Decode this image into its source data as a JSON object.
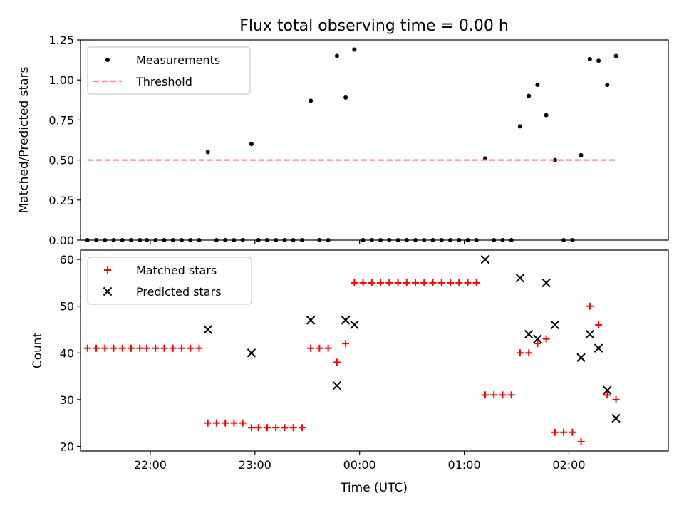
{
  "figure": {
    "title": "Flux total observing time = 0.00 h",
    "xlabel": "Time (UTC)"
  },
  "chart_data": [
    {
      "type": "scatter",
      "ylabel": "Matched/Predicted stars",
      "ylim": [
        0,
        1.25
      ],
      "yticks": [
        0.0,
        0.25,
        0.5,
        0.75,
        1.0,
        1.25
      ],
      "xlim": [
        "21:20",
        "02:57"
      ],
      "xticks": [
        "22:00",
        "23:00",
        "00:00",
        "01:00",
        "02:00"
      ],
      "legend_position": "upper-left",
      "series": [
        {
          "name": "Measurements",
          "marker": "dot",
          "color": "#000000",
          "points": [
            [
              "21:24",
              0
            ],
            [
              "21:29",
              0
            ],
            [
              "21:34",
              0
            ],
            [
              "21:39",
              0
            ],
            [
              "21:44",
              0
            ],
            [
              "21:49",
              0
            ],
            [
              "21:54",
              0
            ],
            [
              "21:58",
              0
            ],
            [
              "22:03",
              0
            ],
            [
              "22:08",
              0
            ],
            [
              "22:13",
              0
            ],
            [
              "22:18",
              0
            ],
            [
              "22:23",
              0
            ],
            [
              "22:28",
              0
            ],
            [
              "22:33",
              0.55
            ],
            [
              "22:38",
              0
            ],
            [
              "22:43",
              0
            ],
            [
              "22:48",
              0
            ],
            [
              "22:53",
              0
            ],
            [
              "22:58",
              0.6
            ],
            [
              "23:02",
              0
            ],
            [
              "23:07",
              0
            ],
            [
              "23:12",
              0
            ],
            [
              "23:17",
              0
            ],
            [
              "23:22",
              0
            ],
            [
              "23:27",
              0
            ],
            [
              "23:32",
              0.87
            ],
            [
              "23:37",
              0
            ],
            [
              "23:42",
              0
            ],
            [
              "23:47",
              1.15
            ],
            [
              "23:52",
              0.89
            ],
            [
              "23:57",
              1.19
            ],
            [
              "00:02",
              0
            ],
            [
              "00:07",
              0
            ],
            [
              "00:12",
              0
            ],
            [
              "00:17",
              0
            ],
            [
              "00:22",
              0
            ],
            [
              "00:27",
              0
            ],
            [
              "00:32",
              0
            ],
            [
              "00:37",
              0
            ],
            [
              "00:42",
              0
            ],
            [
              "00:47",
              0
            ],
            [
              "00:52",
              0
            ],
            [
              "00:57",
              0
            ],
            [
              "01:02",
              0
            ],
            [
              "01:07",
              0
            ],
            [
              "01:12",
              0.51
            ],
            [
              "01:17",
              0
            ],
            [
              "01:22",
              0
            ],
            [
              "01:27",
              0
            ],
            [
              "01:32",
              0.71
            ],
            [
              "01:37",
              0.9
            ],
            [
              "01:42",
              0.97
            ],
            [
              "01:47",
              0.78
            ],
            [
              "01:52",
              0.5
            ],
            [
              "01:57",
              0
            ],
            [
              "02:02",
              0
            ],
            [
              "02:07",
              0.53
            ],
            [
              "02:12",
              1.13
            ],
            [
              "02:17",
              1.12
            ],
            [
              "02:22",
              0.97
            ],
            [
              "02:27",
              1.15
            ]
          ]
        },
        {
          "name": "Threshold",
          "marker": "dashed-line",
          "color": "#ff7f7f",
          "points": [
            [
              "21:24",
              0.5
            ],
            [
              "02:27",
              0.5
            ]
          ]
        }
      ]
    },
    {
      "type": "scatter",
      "ylabel": "Count",
      "ylim": [
        19,
        62
      ],
      "yticks": [
        20,
        30,
        40,
        50,
        60
      ],
      "xlim": [
        "21:20",
        "02:57"
      ],
      "xticks": [
        "22:00",
        "23:00",
        "00:00",
        "01:00",
        "02:00"
      ],
      "legend_position": "upper-left",
      "series": [
        {
          "name": "Matched stars",
          "marker": "plus",
          "color": "#ff0000",
          "points": [
            [
              "21:24",
              41
            ],
            [
              "21:29",
              41
            ],
            [
              "21:34",
              41
            ],
            [
              "21:39",
              41
            ],
            [
              "21:44",
              41
            ],
            [
              "21:49",
              41
            ],
            [
              "21:54",
              41
            ],
            [
              "21:58",
              41
            ],
            [
              "22:03",
              41
            ],
            [
              "22:08",
              41
            ],
            [
              "22:13",
              41
            ],
            [
              "22:18",
              41
            ],
            [
              "22:23",
              41
            ],
            [
              "22:28",
              41
            ],
            [
              "22:33",
              25
            ],
            [
              "22:38",
              25
            ],
            [
              "22:43",
              25
            ],
            [
              "22:48",
              25
            ],
            [
              "22:53",
              25
            ],
            [
              "22:58",
              24
            ],
            [
              "23:02",
              24
            ],
            [
              "23:07",
              24
            ],
            [
              "23:12",
              24
            ],
            [
              "23:17",
              24
            ],
            [
              "23:22",
              24
            ],
            [
              "23:27",
              24
            ],
            [
              "23:32",
              41
            ],
            [
              "23:37",
              41
            ],
            [
              "23:42",
              41
            ],
            [
              "23:47",
              38
            ],
            [
              "23:52",
              42
            ],
            [
              "23:57",
              55
            ],
            [
              "00:02",
              55
            ],
            [
              "00:07",
              55
            ],
            [
              "00:12",
              55
            ],
            [
              "00:17",
              55
            ],
            [
              "00:22",
              55
            ],
            [
              "00:27",
              55
            ],
            [
              "00:32",
              55
            ],
            [
              "00:37",
              55
            ],
            [
              "00:42",
              55
            ],
            [
              "00:47",
              55
            ],
            [
              "00:52",
              55
            ],
            [
              "00:57",
              55
            ],
            [
              "01:02",
              55
            ],
            [
              "01:07",
              55
            ],
            [
              "01:12",
              31
            ],
            [
              "01:17",
              31
            ],
            [
              "01:22",
              31
            ],
            [
              "01:27",
              31
            ],
            [
              "01:32",
              40
            ],
            [
              "01:37",
              40
            ],
            [
              "01:42",
              42
            ],
            [
              "01:47",
              43
            ],
            [
              "01:52",
              23
            ],
            [
              "01:57",
              23
            ],
            [
              "02:02",
              23
            ],
            [
              "02:07",
              21
            ],
            [
              "02:12",
              50
            ],
            [
              "02:17",
              46
            ],
            [
              "02:22",
              31
            ],
            [
              "02:27",
              30
            ]
          ]
        },
        {
          "name": "Predicted stars",
          "marker": "x",
          "color": "#000000",
          "points": [
            [
              "22:33",
              45
            ],
            [
              "22:58",
              40
            ],
            [
              "23:32",
              47
            ],
            [
              "23:47",
              33
            ],
            [
              "23:52",
              47
            ],
            [
              "23:57",
              46
            ],
            [
              "01:12",
              60
            ],
            [
              "01:32",
              56
            ],
            [
              "01:37",
              44
            ],
            [
              "01:42",
              43
            ],
            [
              "01:47",
              55
            ],
            [
              "01:52",
              46
            ],
            [
              "02:07",
              39
            ],
            [
              "02:12",
              44
            ],
            [
              "02:17",
              41
            ],
            [
              "02:22",
              32
            ],
            [
              "02:27",
              26
            ]
          ]
        }
      ]
    }
  ]
}
